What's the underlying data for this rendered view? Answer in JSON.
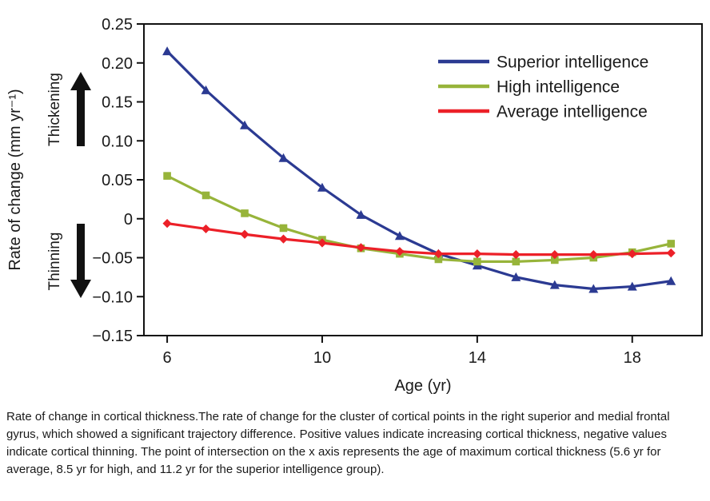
{
  "chart_data": {
    "type": "line",
    "title": "",
    "xlabel": "Age (yr)",
    "ylabel": "Rate of change (mm yr⁻¹)",
    "xlim": [
      5.4,
      19.8
    ],
    "ylim": [
      -0.15,
      0.25
    ],
    "grid": false,
    "legend_position": "top-right-inside",
    "x_ticks": [
      6,
      10,
      14,
      18
    ],
    "x_tick_labels": [
      "6",
      "10",
      "14",
      "18"
    ],
    "y_ticks": [
      0.25,
      0.2,
      0.15,
      0.1,
      0.05,
      0,
      -0.05,
      -0.1,
      -0.15
    ],
    "y_tick_labels": [
      "0.25",
      "0.20",
      "0.15",
      "0.10",
      "0.05",
      "0",
      "−0.05",
      "−0.10",
      "−0.15"
    ],
    "x": [
      6,
      7,
      8,
      9,
      10,
      11,
      12,
      13,
      14,
      15,
      16,
      17,
      18,
      19
    ],
    "series": [
      {
        "name": "Superior intelligence",
        "color": "#2b3a92",
        "marker": "triangle",
        "values": [
          0.215,
          0.165,
          0.12,
          0.078,
          0.04,
          0.005,
          -0.022,
          -0.045,
          -0.06,
          -0.075,
          -0.085,
          -0.09,
          -0.087,
          -0.08
        ]
      },
      {
        "name": "High intelligence",
        "color": "#97b43a",
        "marker": "square",
        "values": [
          0.055,
          0.03,
          0.007,
          -0.012,
          -0.027,
          -0.038,
          -0.045,
          -0.052,
          -0.055,
          -0.055,
          -0.053,
          -0.05,
          -0.043,
          -0.032
        ]
      },
      {
        "name": "Average intelligence",
        "color": "#ec2028",
        "marker": "diamond",
        "values": [
          -0.006,
          -0.013,
          -0.02,
          -0.026,
          -0.031,
          -0.037,
          -0.042,
          -0.045,
          -0.045,
          -0.046,
          -0.046,
          -0.046,
          -0.045,
          -0.044
        ]
      }
    ],
    "annotations": {
      "thickening": "Thickening",
      "thinning": "Thinning"
    },
    "intersections_note": {
      "average_yr": "5.6",
      "high_yr": "8.5",
      "superior_yr": "11.2"
    }
  },
  "caption": {
    "text": "Rate of change in cortical thickness.The rate of change for the cluster of cortical points in the right superior and medial frontal gyrus, which showed a significant trajectory difference. Positive values indicate increasing cortical thickness, negative values indicate cortical thinning. The point of intersection on the x axis represents the age of maximum cortical thickness (5.6 yr for average, 8.5 yr for high, and 11.2 yr for the superior intelligence group)."
  }
}
